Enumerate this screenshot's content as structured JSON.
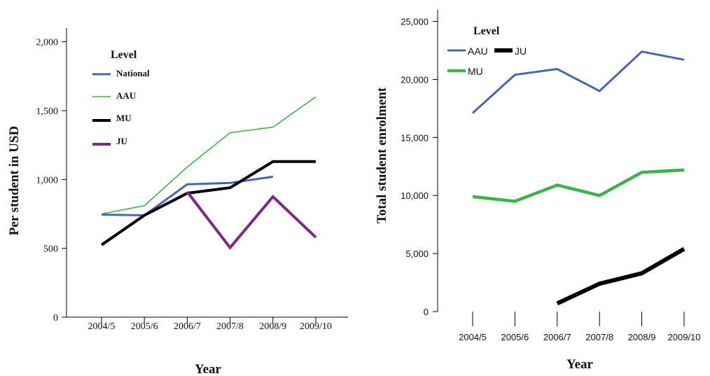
{
  "chart_data": [
    {
      "type": "line",
      "xlabel": "Year",
      "ylabel": "Per student in USD",
      "categories": [
        "2004/5",
        "2005/6",
        "2006/7",
        "2007/8",
        "2008/9",
        "2009/10"
      ],
      "ylim": [
        0,
        2100
      ],
      "yticks": [
        "0",
        "500",
        "1,000",
        "1,500",
        "2,000"
      ],
      "ytick_values": [
        0,
        500,
        1000,
        1500,
        2000
      ],
      "legend": {
        "title": "Level",
        "placement": "top-left"
      },
      "series": [
        {
          "name": "National",
          "color": "#4a64ad",
          "values": [
            745,
            740,
            965,
            975,
            1020,
            null
          ]
        },
        {
          "name": "AAU",
          "color": "#3cb44a",
          "values": [
            750,
            810,
            1090,
            1340,
            1380,
            1600
          ]
        },
        {
          "name": "MU",
          "color": "#000000",
          "values": [
            525,
            740,
            900,
            940,
            1130,
            1130
          ]
        },
        {
          "name": "JU",
          "color": "#7b2a82",
          "values": [
            null,
            null,
            910,
            505,
            875,
            580
          ]
        }
      ]
    },
    {
      "type": "line",
      "xlabel": "Year",
      "ylabel": "Total student enrolment",
      "categories": [
        "2004/5",
        "2005/6",
        "2006/7",
        "2007/8",
        "2008/9",
        "2009/10"
      ],
      "ylim": [
        0,
        26000
      ],
      "yticks": [
        "0",
        "5,000",
        "10,000",
        "15,000",
        "20,000",
        "25,000"
      ],
      "ytick_values": [
        0,
        5000,
        10000,
        15000,
        20000,
        25000
      ],
      "legend": {
        "title": "Level",
        "placement": "top-left"
      },
      "series": [
        {
          "name": "AAU",
          "color": "#4a64ad",
          "values": [
            17100,
            20400,
            20900,
            19000,
            22400,
            21700
          ]
        },
        {
          "name": "JU",
          "color": "#000000",
          "values": [
            null,
            null,
            700,
            2400,
            3300,
            5400
          ]
        },
        {
          "name": "MU",
          "color": "#3cb44a",
          "values": [
            9900,
            9500,
            10900,
            10000,
            12000,
            12200
          ]
        }
      ]
    }
  ]
}
